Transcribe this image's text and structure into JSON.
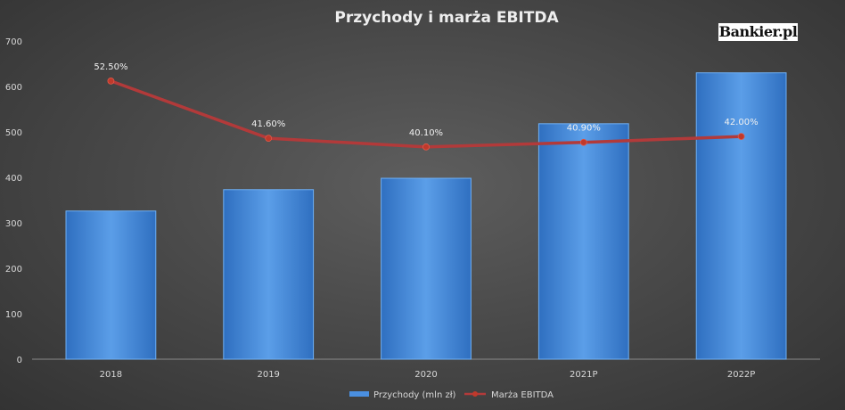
{
  "brand": {
    "logo_text": "Bankier.pl"
  },
  "colors": {
    "bar_top": "#5b9ee8",
    "bar_bottom": "#2f6fc0",
    "bar_edge": "#6fb0f5",
    "line": "#b23a3a",
    "marker": "#c0392b",
    "text": "#d8d8d8",
    "title": "#eeeeee"
  },
  "chart_data": {
    "type": "bar",
    "title": "Przychody i marża EBITDA",
    "categories": [
      "2018",
      "2019",
      "2020",
      "2021P",
      "2022P"
    ],
    "ylim": [
      0,
      700
    ],
    "yticks": [
      0,
      100,
      200,
      300,
      400,
      500,
      600,
      700
    ],
    "grid": false,
    "legend_position": "bottom",
    "series": [
      {
        "name": "Przychody (mln zł)",
        "type": "bar",
        "values": [
          326,
          373,
          398,
          518,
          630
        ]
      },
      {
        "name": "Marża EBITDA",
        "type": "line",
        "values": [
          52.5,
          41.6,
          40.1,
          40.9,
          42.0
        ],
        "labels": [
          "52.50%",
          "41.60%",
          "40.10%",
          "40.90%",
          "42.00%"
        ],
        "plotted_on_scale": [
          612,
          486,
          467,
          477,
          490
        ]
      }
    ]
  }
}
